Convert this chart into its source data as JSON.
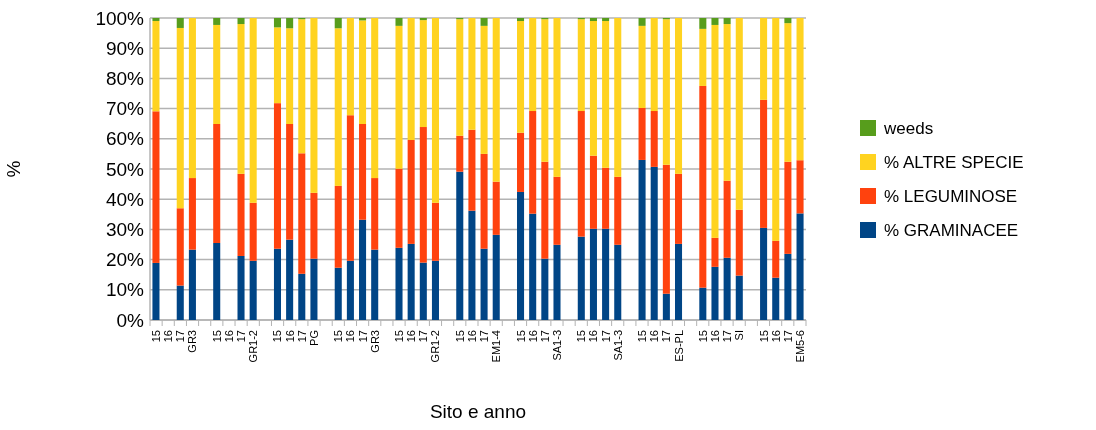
{
  "chart_data": {
    "type": "bar",
    "stacked": true,
    "xlabel": "Sito e anno",
    "ylabel": "%",
    "categories": [
      "15",
      "16",
      "17",
      "GR3",
      null,
      "15",
      "16",
      "17",
      "GR1-2",
      null,
      "15",
      "16",
      "17",
      "PG",
      null,
      "15",
      "16",
      "17",
      "GR3",
      null,
      "15",
      "16",
      "17",
      "GR1-2",
      null,
      "15",
      "16",
      "17",
      "EM1-4",
      null,
      "15",
      "16",
      "17",
      "SA1-3",
      null,
      "15",
      "16",
      "17",
      "SA1-3",
      null,
      "15",
      "16",
      "17",
      "ES-PL",
      null,
      "15",
      "16",
      "17",
      "SI",
      null,
      "15",
      "16",
      "17",
      "EM5-6"
    ],
    "ylim": [
      0,
      100
    ],
    "yticks": [
      {
        "value": 0,
        "label": "0%"
      },
      {
        "value": 10,
        "label": "10%"
      },
      {
        "value": 20,
        "label": "20%"
      },
      {
        "value": 30,
        "label": "30%"
      },
      {
        "value": 40,
        "label": "40%"
      },
      {
        "value": 50,
        "label": "50%"
      },
      {
        "value": 60,
        "label": "60%"
      },
      {
        "value": 70,
        "label": "70%"
      },
      {
        "value": 80,
        "label": "80%"
      },
      {
        "value": 90,
        "label": "90%"
      },
      {
        "value": 100,
        "label": "100%"
      }
    ],
    "grid": "y",
    "legend": "right",
    "series": [
      {
        "name": "% GRAMINACEE",
        "color": "#004586",
        "values": [
          18.9,
          null,
          11.4,
          23.3,
          null,
          25.5,
          null,
          21.2,
          19.6,
          null,
          23.6,
          26.6,
          15.3,
          20.3,
          null,
          17.3,
          19.6,
          33.2,
          23.3,
          null,
          23.9,
          25.2,
          19.0,
          19.6,
          null,
          49.1,
          36.2,
          23.6,
          28.2,
          null,
          42.4,
          35.2,
          20.3,
          24.9,
          null,
          27.6,
          30.2,
          30.2,
          24.9,
          null,
          53.0,
          50.7,
          8.7,
          25.2,
          null,
          10.7,
          17.6,
          20.6,
          14.7,
          null,
          30.5,
          14.0,
          21.9,
          35.3
        ]
      },
      {
        "name": "% LEGUMINOSE",
        "color": "#ff420e",
        "values": [
          50.2,
          null,
          25.6,
          23.7,
          null,
          39.4,
          null,
          27.2,
          19.2,
          null,
          48.2,
          38.3,
          39.9,
          21.8,
          null,
          27.1,
          48.2,
          31.7,
          23.7,
          null,
          26.2,
          34.4,
          44.9,
          19.2,
          null,
          11.9,
          26.8,
          31.4,
          17.6,
          null,
          19.6,
          34.0,
          32.1,
          22.5,
          null,
          41.6,
          24.2,
          20.2,
          22.5,
          null,
          17.2,
          18.5,
          42.7,
          23.2,
          null,
          66.8,
          9.6,
          25.5,
          21.8,
          null,
          42.4,
          12.2,
          30.5,
          17.6
        ]
      },
      {
        "name": "% ALTRE SPECIE",
        "color": "#ffd320",
        "values": [
          29.9,
          null,
          59.7,
          53.0,
          null,
          32.8,
          null,
          49.6,
          61.2,
          null,
          25.1,
          31.7,
          44.4,
          57.9,
          null,
          52.2,
          32.2,
          34.3,
          53.0,
          null,
          47.3,
          40.4,
          35.4,
          61.2,
          null,
          38.6,
          37.0,
          42.4,
          54.2,
          null,
          37.0,
          30.8,
          47.2,
          52.6,
          null,
          30.4,
          44.6,
          48.6,
          52.6,
          null,
          27.2,
          30.8,
          48.2,
          51.6,
          null,
          18.9,
          70.5,
          51.9,
          63.5,
          null,
          27.1,
          73.8,
          45.9,
          47.1
        ]
      },
      {
        "name": "weeds",
        "color": "#579d1c",
        "values": [
          1.0,
          null,
          3.3,
          null,
          null,
          2.3,
          null,
          2.0,
          null,
          null,
          3.1,
          3.4,
          0.4,
          null,
          null,
          3.4,
          null,
          0.8,
          null,
          null,
          2.6,
          null,
          0.7,
          null,
          null,
          0.4,
          null,
          2.6,
          null,
          null,
          1.0,
          null,
          0.4,
          null,
          null,
          0.4,
          1.0,
          1.0,
          null,
          null,
          2.6,
          null,
          0.4,
          null,
          null,
          3.6,
          2.3,
          2.0,
          null,
          null,
          null,
          null,
          1.7,
          null
        ]
      }
    ]
  }
}
